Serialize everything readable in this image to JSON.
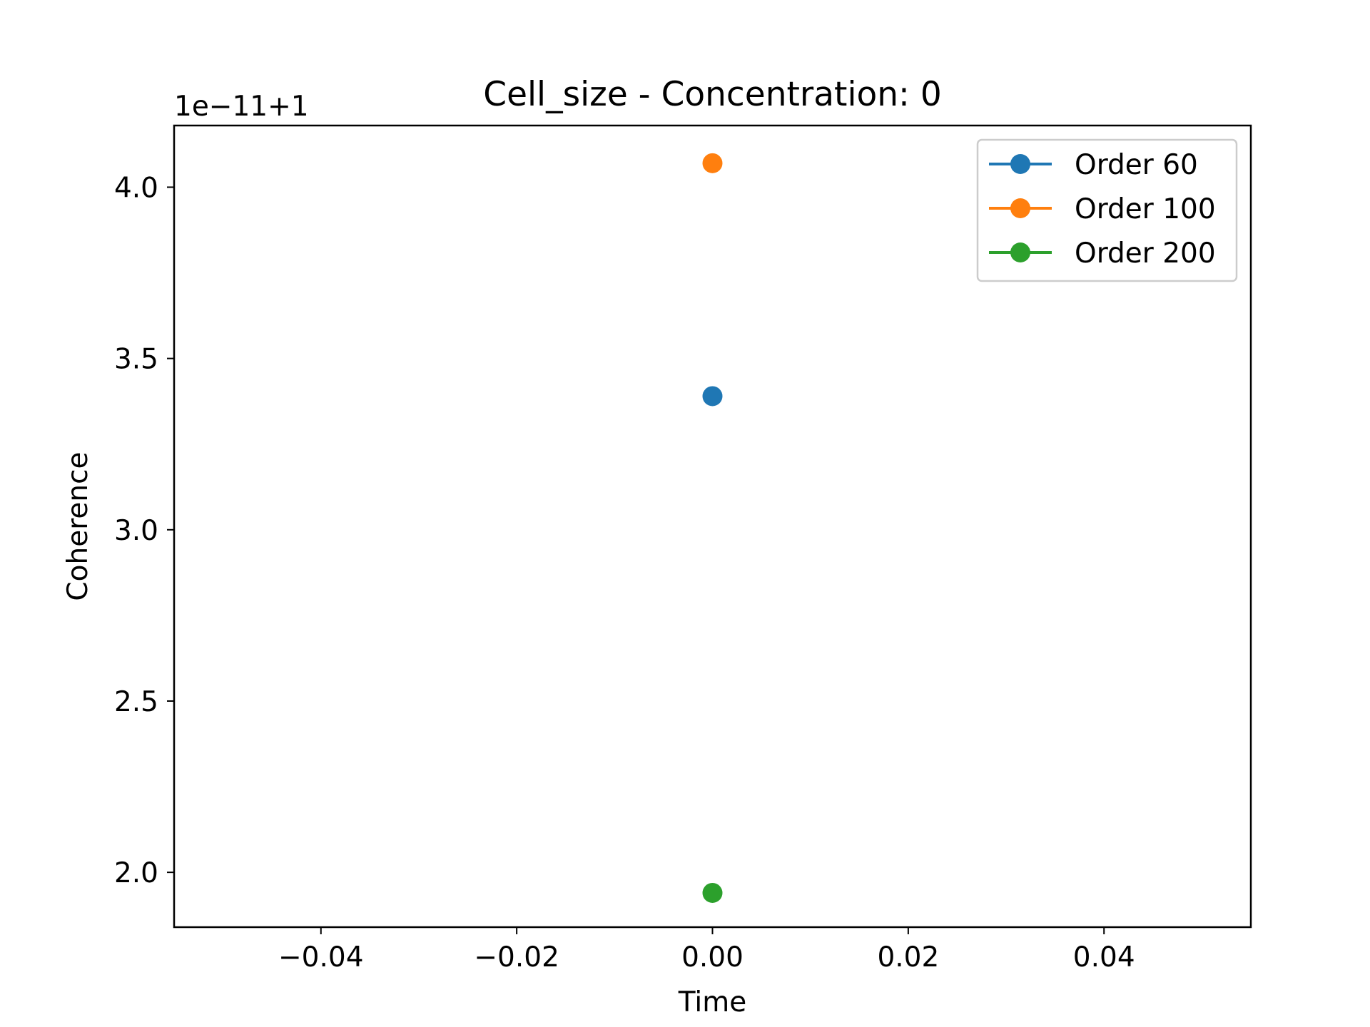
{
  "chart_data": {
    "type": "line",
    "title": "Cell_size - Concentration: 0",
    "xlabel": "Time",
    "ylabel": "Coherence",
    "y_offset_label": "1e−11+1",
    "xlim": [
      -0.055,
      0.055
    ],
    "ylim": [
      1.84,
      4.18
    ],
    "x_ticks": [
      {
        "value": -0.04,
        "label": "−0.04"
      },
      {
        "value": -0.02,
        "label": "−0.02"
      },
      {
        "value": 0.0,
        "label": "0.00"
      },
      {
        "value": 0.02,
        "label": "0.02"
      },
      {
        "value": 0.04,
        "label": "0.04"
      }
    ],
    "y_ticks": [
      {
        "value": 2.0,
        "label": "2.0"
      },
      {
        "value": 2.5,
        "label": "2.5"
      },
      {
        "value": 3.0,
        "label": "3.0"
      },
      {
        "value": 3.5,
        "label": "3.5"
      },
      {
        "value": 4.0,
        "label": "4.0"
      }
    ],
    "grid": false,
    "legend_position": "top-right",
    "series": [
      {
        "name": "Order 60",
        "color": "#1f77b4",
        "x": [
          0.0
        ],
        "y": [
          3.39
        ]
      },
      {
        "name": "Order 100",
        "color": "#ff7f0e",
        "x": [
          0.0
        ],
        "y": [
          4.07
        ]
      },
      {
        "name": "Order 200",
        "color": "#2ca02c",
        "x": [
          0.0
        ],
        "y": [
          1.94
        ]
      }
    ]
  }
}
